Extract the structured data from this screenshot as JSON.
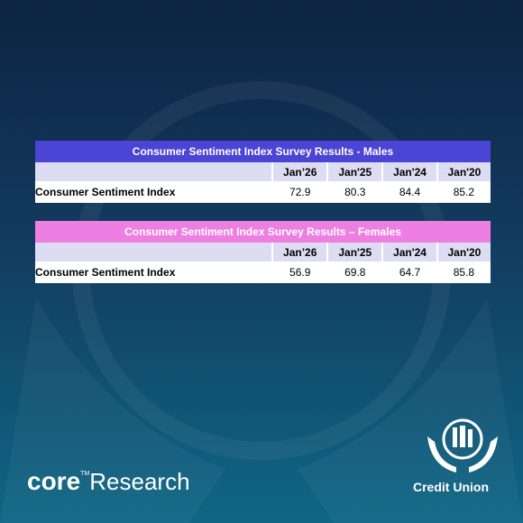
{
  "tables": [
    {
      "title": "Consumer Sentiment Index Survey Results -  Males",
      "title_color": "#4b44d4",
      "header_color": "#dcdcf2",
      "columns": [
        "Jan’26",
        "Jan'25",
        "Jan'24",
        "Jan'20"
      ],
      "rows": [
        {
          "label": "Consumer Sentiment Index",
          "values": [
            72.9,
            80.3,
            84.4,
            85.2
          ]
        }
      ]
    },
    {
      "title": "Consumer Sentiment Index Survey Results – Females",
      "title_color": "#ee7fe2",
      "header_color": "#dcdcf2",
      "columns": [
        "Jan’26",
        "Jan'25",
        "Jan'24",
        "Jan'20"
      ],
      "rows": [
        {
          "label": "Consumer Sentiment Index",
          "values": [
            56.9,
            69.8,
            64.7,
            85.8
          ]
        }
      ]
    }
  ],
  "branding": {
    "core": "core",
    "trademark": "TM",
    "research": "Research",
    "credit_union": "Credit Union"
  }
}
